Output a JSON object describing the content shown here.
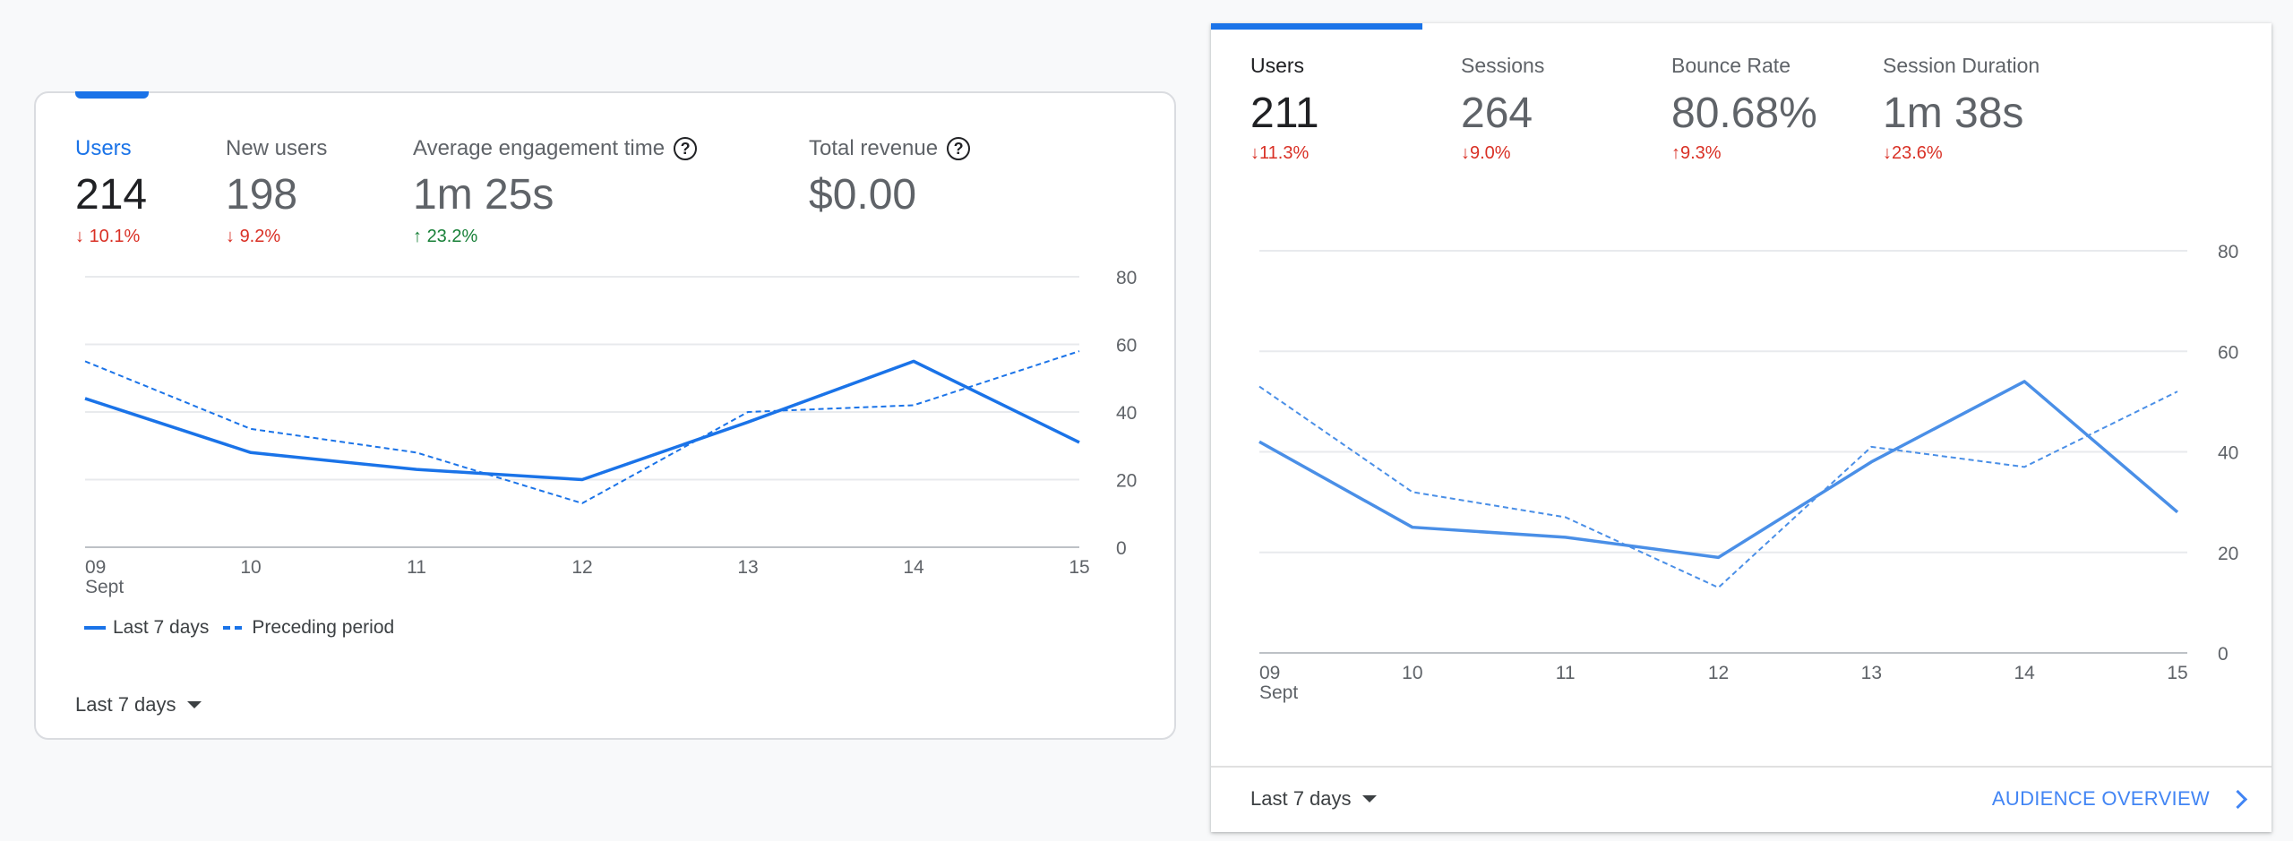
{
  "ga4_card": {
    "metrics": [
      {
        "label": "Users",
        "value": "214",
        "delta": "10.1%",
        "direction": "down",
        "help": false
      },
      {
        "label": "New users",
        "value": "198",
        "delta": "9.2%",
        "direction": "down",
        "help": false
      },
      {
        "label": "Average engagement time",
        "value": "1m 25s",
        "delta": "23.2%",
        "direction": "up",
        "help": true
      },
      {
        "label": "Total revenue",
        "value": "$0.00",
        "delta": "",
        "direction": "",
        "help": true
      }
    ],
    "legend": {
      "current": "Last 7 days",
      "previous": "Preceding period"
    },
    "date_range": "Last 7 days"
  },
  "ua_card": {
    "metrics": [
      {
        "label": "Users",
        "value": "211",
        "delta": "11.3%",
        "direction": "down"
      },
      {
        "label": "Sessions",
        "value": "264",
        "delta": "9.0%",
        "direction": "down"
      },
      {
        "label": "Bounce Rate",
        "value": "80.68%",
        "delta": "9.3%",
        "direction": "up"
      },
      {
        "label": "Session Duration",
        "value": "1m 38s",
        "delta": "23.6%",
        "direction": "down"
      }
    ],
    "date_range": "Last 7 days",
    "audience_link": "AUDIENCE OVERVIEW"
  },
  "colors": {
    "accent": "#1a73e8",
    "down": "#d93025",
    "up": "#188038",
    "link": "#4285f4"
  },
  "chart_data": [
    {
      "type": "line",
      "title": "",
      "categories": [
        "09",
        "10",
        "11",
        "12",
        "13",
        "14",
        "15"
      ],
      "month_label": "Sept",
      "y_ticks": [
        "80",
        "60",
        "40",
        "20",
        "0"
      ],
      "series": [
        {
          "name": "Last 7 days",
          "style": "solid",
          "values": [
            44,
            28,
            23,
            20,
            37,
            55,
            31
          ]
        },
        {
          "name": "Preceding period",
          "style": "dashed",
          "values": [
            55,
            35,
            28,
            13,
            40,
            42,
            58
          ]
        }
      ]
    },
    {
      "type": "line",
      "title": "",
      "categories": [
        "09",
        "10",
        "11",
        "12",
        "13",
        "14",
        "15"
      ],
      "month_label": "Sept",
      "y_ticks": [
        "80",
        "60",
        "40",
        "20",
        "0"
      ],
      "series": [
        {
          "style": "solid",
          "values": [
            42,
            25,
            23,
            19,
            38,
            54,
            28
          ]
        },
        {
          "style": "dashed",
          "values": [
            53,
            32,
            27,
            13,
            41,
            37,
            52
          ]
        }
      ]
    }
  ]
}
